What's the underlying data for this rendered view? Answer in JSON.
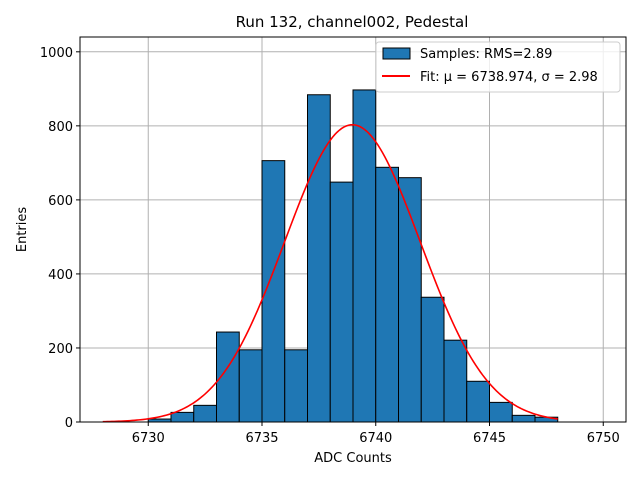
{
  "chart_data": {
    "type": "bar",
    "title": "Run 132, channel002, Pedestal",
    "xlabel": "ADC Counts",
    "ylabel": "Entries",
    "xlim": [
      6727,
      6751
    ],
    "ylim": [
      0,
      1040
    ],
    "xticks": [
      6730,
      6735,
      6740,
      6745,
      6750
    ],
    "yticks": [
      0,
      200,
      400,
      600,
      800,
      1000
    ],
    "grid": true,
    "legend_position": "top-right",
    "histogram": {
      "name": "Samples: RMS=2.89",
      "color": "#1f77b4",
      "bins": [
        {
          "left": 6728,
          "right": 6729,
          "count": 0
        },
        {
          "left": 6729,
          "right": 6730,
          "count": 0
        },
        {
          "left": 6730,
          "right": 6731,
          "count": 8
        },
        {
          "left": 6731,
          "right": 6732,
          "count": 26
        },
        {
          "left": 6732,
          "right": 6733,
          "count": 45
        },
        {
          "left": 6733,
          "right": 6734,
          "count": 243
        },
        {
          "left": 6734,
          "right": 6735,
          "count": 195
        },
        {
          "left": 6735,
          "right": 6736,
          "count": 706
        },
        {
          "left": 6736,
          "right": 6737,
          "count": 195
        },
        {
          "left": 6737,
          "right": 6738,
          "count": 884
        },
        {
          "left": 6738,
          "right": 6739,
          "count": 648
        },
        {
          "left": 6739,
          "right": 6740,
          "count": 897
        },
        {
          "left": 6740,
          "right": 6741,
          "count": 688
        },
        {
          "left": 6741,
          "right": 6742,
          "count": 660
        },
        {
          "left": 6742,
          "right": 6743,
          "count": 337
        },
        {
          "left": 6743,
          "right": 6744,
          "count": 221
        },
        {
          "left": 6744,
          "right": 6745,
          "count": 110
        },
        {
          "left": 6745,
          "right": 6746,
          "count": 53
        },
        {
          "left": 6746,
          "right": 6747,
          "count": 18
        },
        {
          "left": 6747,
          "right": 6748,
          "count": 13
        }
      ]
    },
    "fit": {
      "name": "Fit: μ = 6738.974, σ = 2.98",
      "color": "#ff0000",
      "mu": 6738.974,
      "sigma": 2.98,
      "amplitude": 803,
      "x_range": [
        6728,
        6748
      ]
    }
  }
}
